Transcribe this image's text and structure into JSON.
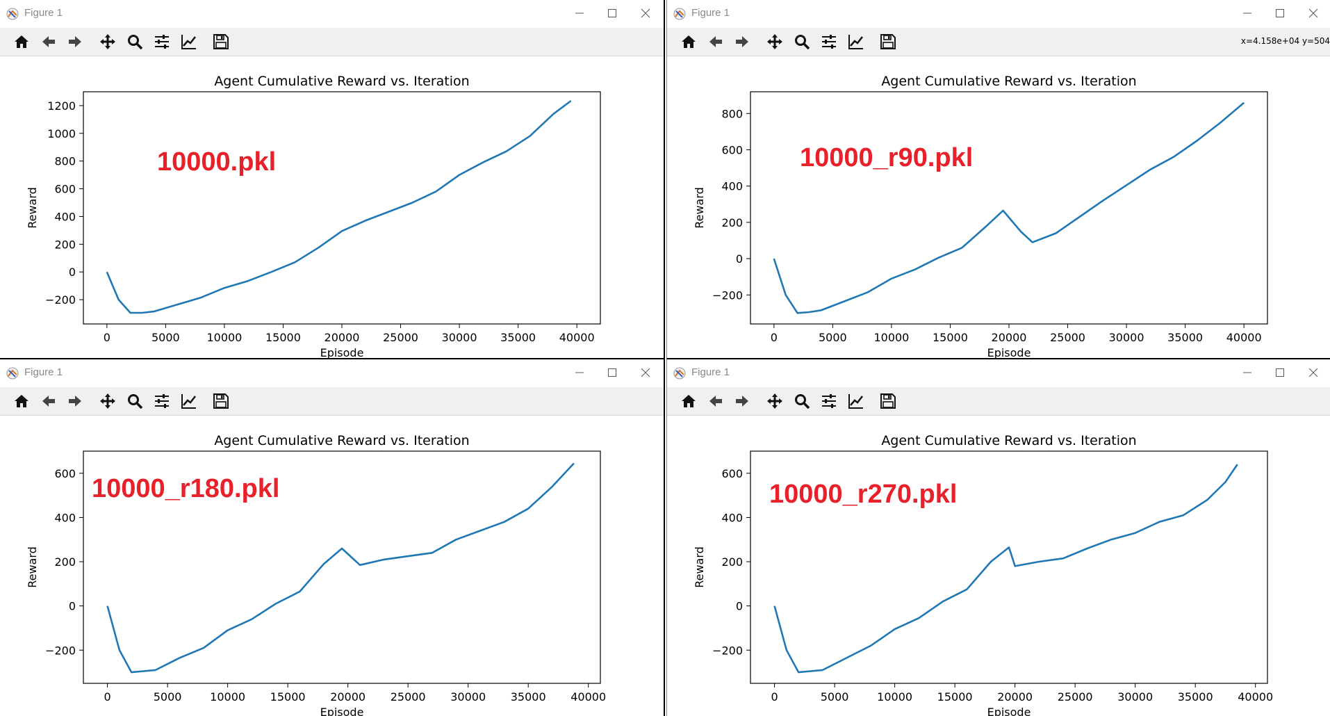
{
  "figures": [
    {
      "window_title": "Figure 1",
      "coords": "",
      "overlay_label": "10000.pkl",
      "chart_data": {
        "type": "line",
        "title": "Agent Cumulative Reward vs. Iteration",
        "xlabel": "Episode",
        "ylabel": "Reward",
        "xlim": [
          -2000,
          42000
        ],
        "ylim": [
          -375,
          1300
        ],
        "xticks": [
          0,
          5000,
          10000,
          15000,
          20000,
          25000,
          30000,
          35000,
          40000
        ],
        "yticks": [
          -200,
          0,
          200,
          400,
          600,
          800,
          1000,
          1200
        ],
        "xtick_labels": [
          "0",
          "5000",
          "10000",
          "15000",
          "20000",
          "25000",
          "30000",
          "35000",
          "40000"
        ],
        "ytick_labels": [
          "−200",
          "0",
          "200",
          "400",
          "600",
          "800",
          "1000",
          "1200"
        ],
        "series": [
          {
            "color": "#1f77b4",
            "x": [
              0,
              1000,
              2000,
              3000,
              4000,
              6000,
              8000,
              10000,
              12000,
              14000,
              16000,
              18000,
              20000,
              22000,
              24000,
              26000,
              28000,
              30000,
              32000,
              34000,
              36000,
              38000,
              39500
            ],
            "y": [
              0,
              -200,
              -295,
              -295,
              -285,
              -235,
              -185,
              -115,
              -65,
              0,
              70,
              175,
              295,
              370,
              435,
              500,
              580,
              700,
              790,
              870,
              980,
              1140,
              1235
            ]
          }
        ]
      }
    },
    {
      "window_title": "Figure 1",
      "coords": "x=4.158e+04 y=504",
      "overlay_label": "10000_r90.pkl",
      "chart_data": {
        "type": "line",
        "title": "Agent Cumulative Reward vs. Iteration",
        "xlabel": "Episode",
        "ylabel": "Reward",
        "xlim": [
          -2000,
          42000
        ],
        "ylim": [
          -360,
          920
        ],
        "xticks": [
          0,
          5000,
          10000,
          15000,
          20000,
          25000,
          30000,
          35000,
          40000
        ],
        "yticks": [
          -200,
          0,
          200,
          400,
          600,
          800
        ],
        "xtick_labels": [
          "0",
          "5000",
          "10000",
          "15000",
          "20000",
          "25000",
          "30000",
          "35000",
          "40000"
        ],
        "ytick_labels": [
          "−200",
          "0",
          "200",
          "400",
          "600",
          "800"
        ],
        "series": [
          {
            "color": "#1f77b4",
            "x": [
              0,
              1000,
              2000,
              3000,
              4000,
              6000,
              8000,
              10000,
              12000,
              14000,
              16000,
              18000,
              19500,
              21000,
              22000,
              24000,
              26000,
              28000,
              30000,
              32000,
              34000,
              36000,
              38000,
              40000
            ],
            "y": [
              0,
              -200,
              -300,
              -295,
              -285,
              -235,
              -185,
              -110,
              -60,
              5,
              60,
              175,
              265,
              150,
              90,
              140,
              230,
              320,
              405,
              490,
              560,
              650,
              750,
              860
            ]
          }
        ]
      }
    },
    {
      "window_title": "Figure 1",
      "coords": "",
      "overlay_label": "10000_r180.pkl",
      "chart_data": {
        "type": "line",
        "title": "Agent Cumulative Reward vs. Iteration",
        "xlabel": "Episode",
        "ylabel": "Reward",
        "xlim": [
          -2000,
          41000
        ],
        "ylim": [
          -350,
          700
        ],
        "xticks": [
          0,
          5000,
          10000,
          15000,
          20000,
          25000,
          30000,
          35000,
          40000
        ],
        "yticks": [
          -200,
          0,
          200,
          400,
          600
        ],
        "xtick_labels": [
          "0",
          "5000",
          "10000",
          "15000",
          "20000",
          "25000",
          "30000",
          "35000",
          "40000"
        ],
        "ytick_labels": [
          "−200",
          "0",
          "200",
          "400",
          "600"
        ],
        "series": [
          {
            "color": "#1f77b4",
            "x": [
              0,
              1000,
              2000,
              3000,
              4000,
              6000,
              8000,
              10000,
              12000,
              14000,
              16000,
              18000,
              19500,
              21000,
              23000,
              25000,
              27000,
              29000,
              31000,
              33000,
              35000,
              37000,
              38800
            ],
            "y": [
              0,
              -200,
              -300,
              -295,
              -290,
              -235,
              -190,
              -110,
              -60,
              10,
              65,
              190,
              260,
              185,
              210,
              225,
              240,
              300,
              340,
              380,
              440,
              540,
              645
            ]
          }
        ]
      }
    },
    {
      "window_title": "Figure 1",
      "coords": "",
      "overlay_label": "10000_r270.pkl",
      "chart_data": {
        "type": "line",
        "title": "Agent Cumulative Reward vs. Iteration",
        "xlabel": "Episode",
        "ylabel": "Reward",
        "xlim": [
          -2000,
          41000
        ],
        "ylim": [
          -350,
          700
        ],
        "xticks": [
          0,
          5000,
          10000,
          15000,
          20000,
          25000,
          30000,
          35000,
          40000
        ],
        "yticks": [
          -200,
          0,
          200,
          400,
          600
        ],
        "xtick_labels": [
          "0",
          "5000",
          "10000",
          "15000",
          "20000",
          "25000",
          "30000",
          "35000",
          "40000"
        ],
        "ytick_labels": [
          "−200",
          "0",
          "200",
          "400",
          "600"
        ],
        "series": [
          {
            "color": "#1f77b4",
            "x": [
              0,
              1000,
              2000,
              3000,
              4000,
              6000,
              8000,
              10000,
              12000,
              14000,
              16000,
              18000,
              19500,
              20000,
              22000,
              24000,
              26000,
              28000,
              30000,
              32000,
              34000,
              36000,
              37500,
              38500
            ],
            "y": [
              0,
              -200,
              -300,
              -295,
              -290,
              -235,
              -180,
              -105,
              -55,
              20,
              75,
              200,
              265,
              180,
              200,
              215,
              260,
              300,
              330,
              380,
              410,
              480,
              560,
              640
            ]
          }
        ]
      }
    }
  ]
}
